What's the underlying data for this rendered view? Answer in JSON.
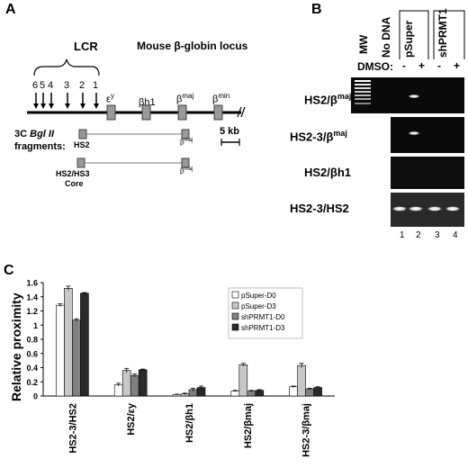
{
  "panels": {
    "a": "A",
    "b": "B",
    "c": "C"
  },
  "panel_a": {
    "lcr_label": "LCR",
    "locus_title": "Mouse β-globin locus",
    "hs_numbers": [
      "6",
      "5",
      "4",
      "3",
      "2",
      "1"
    ],
    "genes": [
      {
        "base": "ε",
        "sup": "y"
      },
      {
        "base": "βh1",
        "sup": ""
      },
      {
        "base": "β",
        "sup": "maj"
      },
      {
        "base": "β",
        "sup": "min"
      }
    ],
    "fragments_prefix": "3C",
    "fragments_enzyme": "Bgl II",
    "fragments_suffix": "fragments:",
    "frag1_left": "HS2",
    "frag1_right_base": "β",
    "frag1_right_sup": "maj",
    "frag2_left_line1": "HS2/HS3",
    "frag2_left_line2": "Core",
    "frag2_right_base": "β",
    "frag2_right_sup": "maj",
    "scale_label": "5 kb"
  },
  "panel_b": {
    "mw_label": "MW",
    "nodna_label": "No DNA",
    "psuper_label": "pSuper",
    "shprmt1_label": "shPRMT1",
    "dmso_label": "DMSO:",
    "dmso_signs": [
      "-",
      "+",
      "-",
      "+"
    ],
    "rows": [
      {
        "base": "HS2/β",
        "sup": "maj"
      },
      {
        "base": "HS2-3/β",
        "sup": "maj"
      },
      {
        "base": "HS2/βh1",
        "sup": ""
      },
      {
        "base": "HS2-3/HS2",
        "sup": ""
      }
    ],
    "lane_numbers": [
      "1",
      "2",
      "3",
      "4"
    ]
  },
  "chart_data": {
    "type": "bar",
    "ylabel": "Relative proximity",
    "ylim": [
      0,
      1.6
    ],
    "yticks": [
      "0",
      "0.2",
      "0.4",
      "0.6",
      "0.8",
      "1",
      "1.2",
      "1.4",
      "1.6"
    ],
    "categories": [
      "HS2-3/HS2",
      "HS2/εy",
      "HS2/βh1",
      "HS2/βmaj",
      "HS2-3/βmaj"
    ],
    "series": [
      {
        "name": "pSuper-D0",
        "color": "#ffffff",
        "values": [
          1.28,
          0.16,
          0.02,
          0.07,
          0.13
        ],
        "errors": [
          0.02,
          0.02,
          0.005,
          0.01,
          0.01
        ]
      },
      {
        "name": "pSuper-D3",
        "color": "#c8c8c8",
        "values": [
          1.52,
          0.36,
          0.03,
          0.44,
          0.43
        ],
        "errors": [
          0.03,
          0.03,
          0.01,
          0.02,
          0.03
        ]
      },
      {
        "name": "shPRMT1-D0",
        "color": "#808080",
        "values": [
          1.07,
          0.29,
          0.09,
          0.07,
          0.1
        ],
        "errors": [
          0.02,
          0.02,
          0.02,
          0.01,
          0.01
        ]
      },
      {
        "name": "shPRMT1-D3",
        "color": "#2a2a2a",
        "values": [
          1.45,
          0.37,
          0.12,
          0.08,
          0.12
        ],
        "errors": [
          0.01,
          0.01,
          0.02,
          0.01,
          0.01
        ]
      }
    ]
  }
}
